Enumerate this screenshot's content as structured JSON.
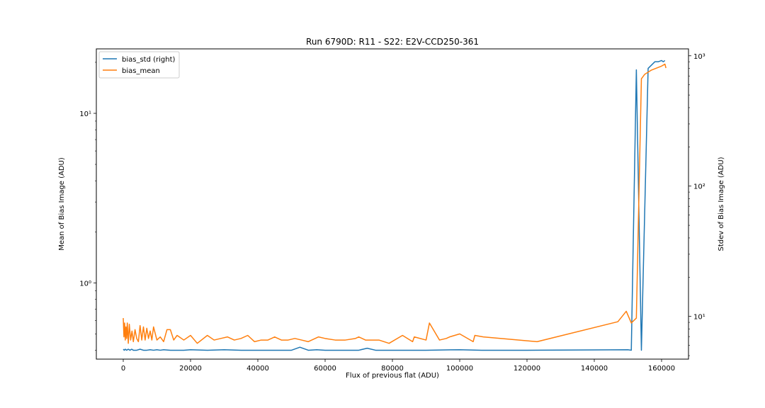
{
  "chart_data": {
    "type": "line",
    "title": "Run 6790D: R11 - S22: E2V-CCD250-361",
    "xlabel": "Flux of previous flat (ADU)",
    "ylabel_left": "Mean of Bias Image (ADU)",
    "ylabel_right": "Stdev of Bias Image (ADU)",
    "xlim": [
      -8000,
      168000
    ],
    "x_ticks": [
      0,
      20000,
      40000,
      60000,
      80000,
      100000,
      120000,
      140000,
      160000
    ],
    "x_tick_labels": [
      "0",
      "20000",
      "40000",
      "60000",
      "80000",
      "100000",
      "120000",
      "140000",
      "160000"
    ],
    "left_axis": {
      "scale": "log",
      "ylim": [
        0.355,
        24
      ],
      "ticks": [
        1,
        10
      ],
      "tick_labels": [
        "10⁰",
        "10¹"
      ]
    },
    "right_axis": {
      "scale": "log",
      "ylim": [
        4.7,
        1130
      ],
      "ticks": [
        10,
        100,
        1000
      ],
      "tick_labels": [
        "10¹",
        "10²",
        "10³"
      ]
    },
    "legend": {
      "placement": "top-left",
      "entries": [
        "bias_std (right)",
        "bias_mean"
      ]
    },
    "series": [
      {
        "name": "bias_std (right)",
        "axis": "right",
        "color": "#1f77b4",
        "x": [
          0,
          300,
          600,
          1000,
          1500,
          2000,
          2500,
          3000,
          4000,
          5000,
          6000,
          7000,
          8000,
          9000,
          10000,
          11000,
          12000,
          14000,
          16000,
          18000,
          20000,
          25000,
          30000,
          35000,
          40000,
          45000,
          50000,
          52500,
          55000,
          57500,
          60000,
          65000,
          70000,
          72500,
          75000,
          80000,
          90000,
          100000,
          106500,
          120000,
          150000,
          151000,
          152500,
          154000,
          156000,
          158000,
          159000,
          160000,
          160500,
          161000
        ],
        "values": [
          5.6,
          5.5,
          5.6,
          5.5,
          5.6,
          5.5,
          5.6,
          5.5,
          5.5,
          5.6,
          5.5,
          5.5,
          5.55,
          5.5,
          5.55,
          5.5,
          5.55,
          5.5,
          5.5,
          5.5,
          5.55,
          5.5,
          5.55,
          5.5,
          5.5,
          5.5,
          5.5,
          5.8,
          5.5,
          5.55,
          5.5,
          5.5,
          5.5,
          5.7,
          5.5,
          5.5,
          5.5,
          5.55,
          5.5,
          5.5,
          5.55,
          5.5,
          780,
          5.5,
          800,
          900,
          900,
          920,
          900,
          920
        ]
      },
      {
        "name": "bias_mean",
        "axis": "left",
        "color": "#ff7f0e",
        "x": [
          0,
          200,
          400,
          600,
          800,
          1000,
          1200,
          1500,
          1800,
          2200,
          2600,
          3000,
          3500,
          4000,
          4500,
          5000,
          5500,
          6000,
          6500,
          7000,
          7500,
          8000,
          8500,
          9000,
          10000,
          11000,
          12000,
          13000,
          14000,
          15000,
          16000,
          18000,
          20000,
          22000,
          25000,
          27000,
          29000,
          31000,
          33000,
          35000,
          37000,
          39000,
          41000,
          43000,
          45000,
          47000,
          49000,
          51000,
          53000,
          55000,
          58000,
          60000,
          63000,
          66000,
          69000,
          70000,
          72000,
          74000,
          76000,
          79000,
          83000,
          86000,
          86500,
          90000,
          91000,
          94000,
          96000,
          97000,
          100000,
          104000,
          104500,
          107000,
          123000,
          147000,
          149500,
          151000,
          152500,
          154000,
          155000,
          157000,
          160000,
          161000,
          161300
        ],
        "values": [
          0.62,
          0.48,
          0.58,
          0.46,
          0.55,
          0.47,
          0.58,
          0.44,
          0.57,
          0.46,
          0.52,
          0.45,
          0.53,
          0.47,
          0.45,
          0.56,
          0.46,
          0.55,
          0.46,
          0.54,
          0.47,
          0.52,
          0.46,
          0.55,
          0.46,
          0.48,
          0.45,
          0.53,
          0.53,
          0.46,
          0.49,
          0.46,
          0.49,
          0.44,
          0.49,
          0.46,
          0.47,
          0.48,
          0.46,
          0.47,
          0.49,
          0.45,
          0.46,
          0.46,
          0.48,
          0.46,
          0.46,
          0.47,
          0.46,
          0.45,
          0.48,
          0.47,
          0.46,
          0.46,
          0.47,
          0.48,
          0.46,
          0.46,
          0.46,
          0.44,
          0.49,
          0.45,
          0.48,
          0.46,
          0.58,
          0.46,
          0.47,
          0.48,
          0.5,
          0.45,
          0.49,
          0.48,
          0.45,
          0.59,
          0.68,
          0.58,
          0.62,
          16.0,
          17.0,
          18.0,
          19.0,
          19.5,
          18.5
        ]
      }
    ]
  }
}
